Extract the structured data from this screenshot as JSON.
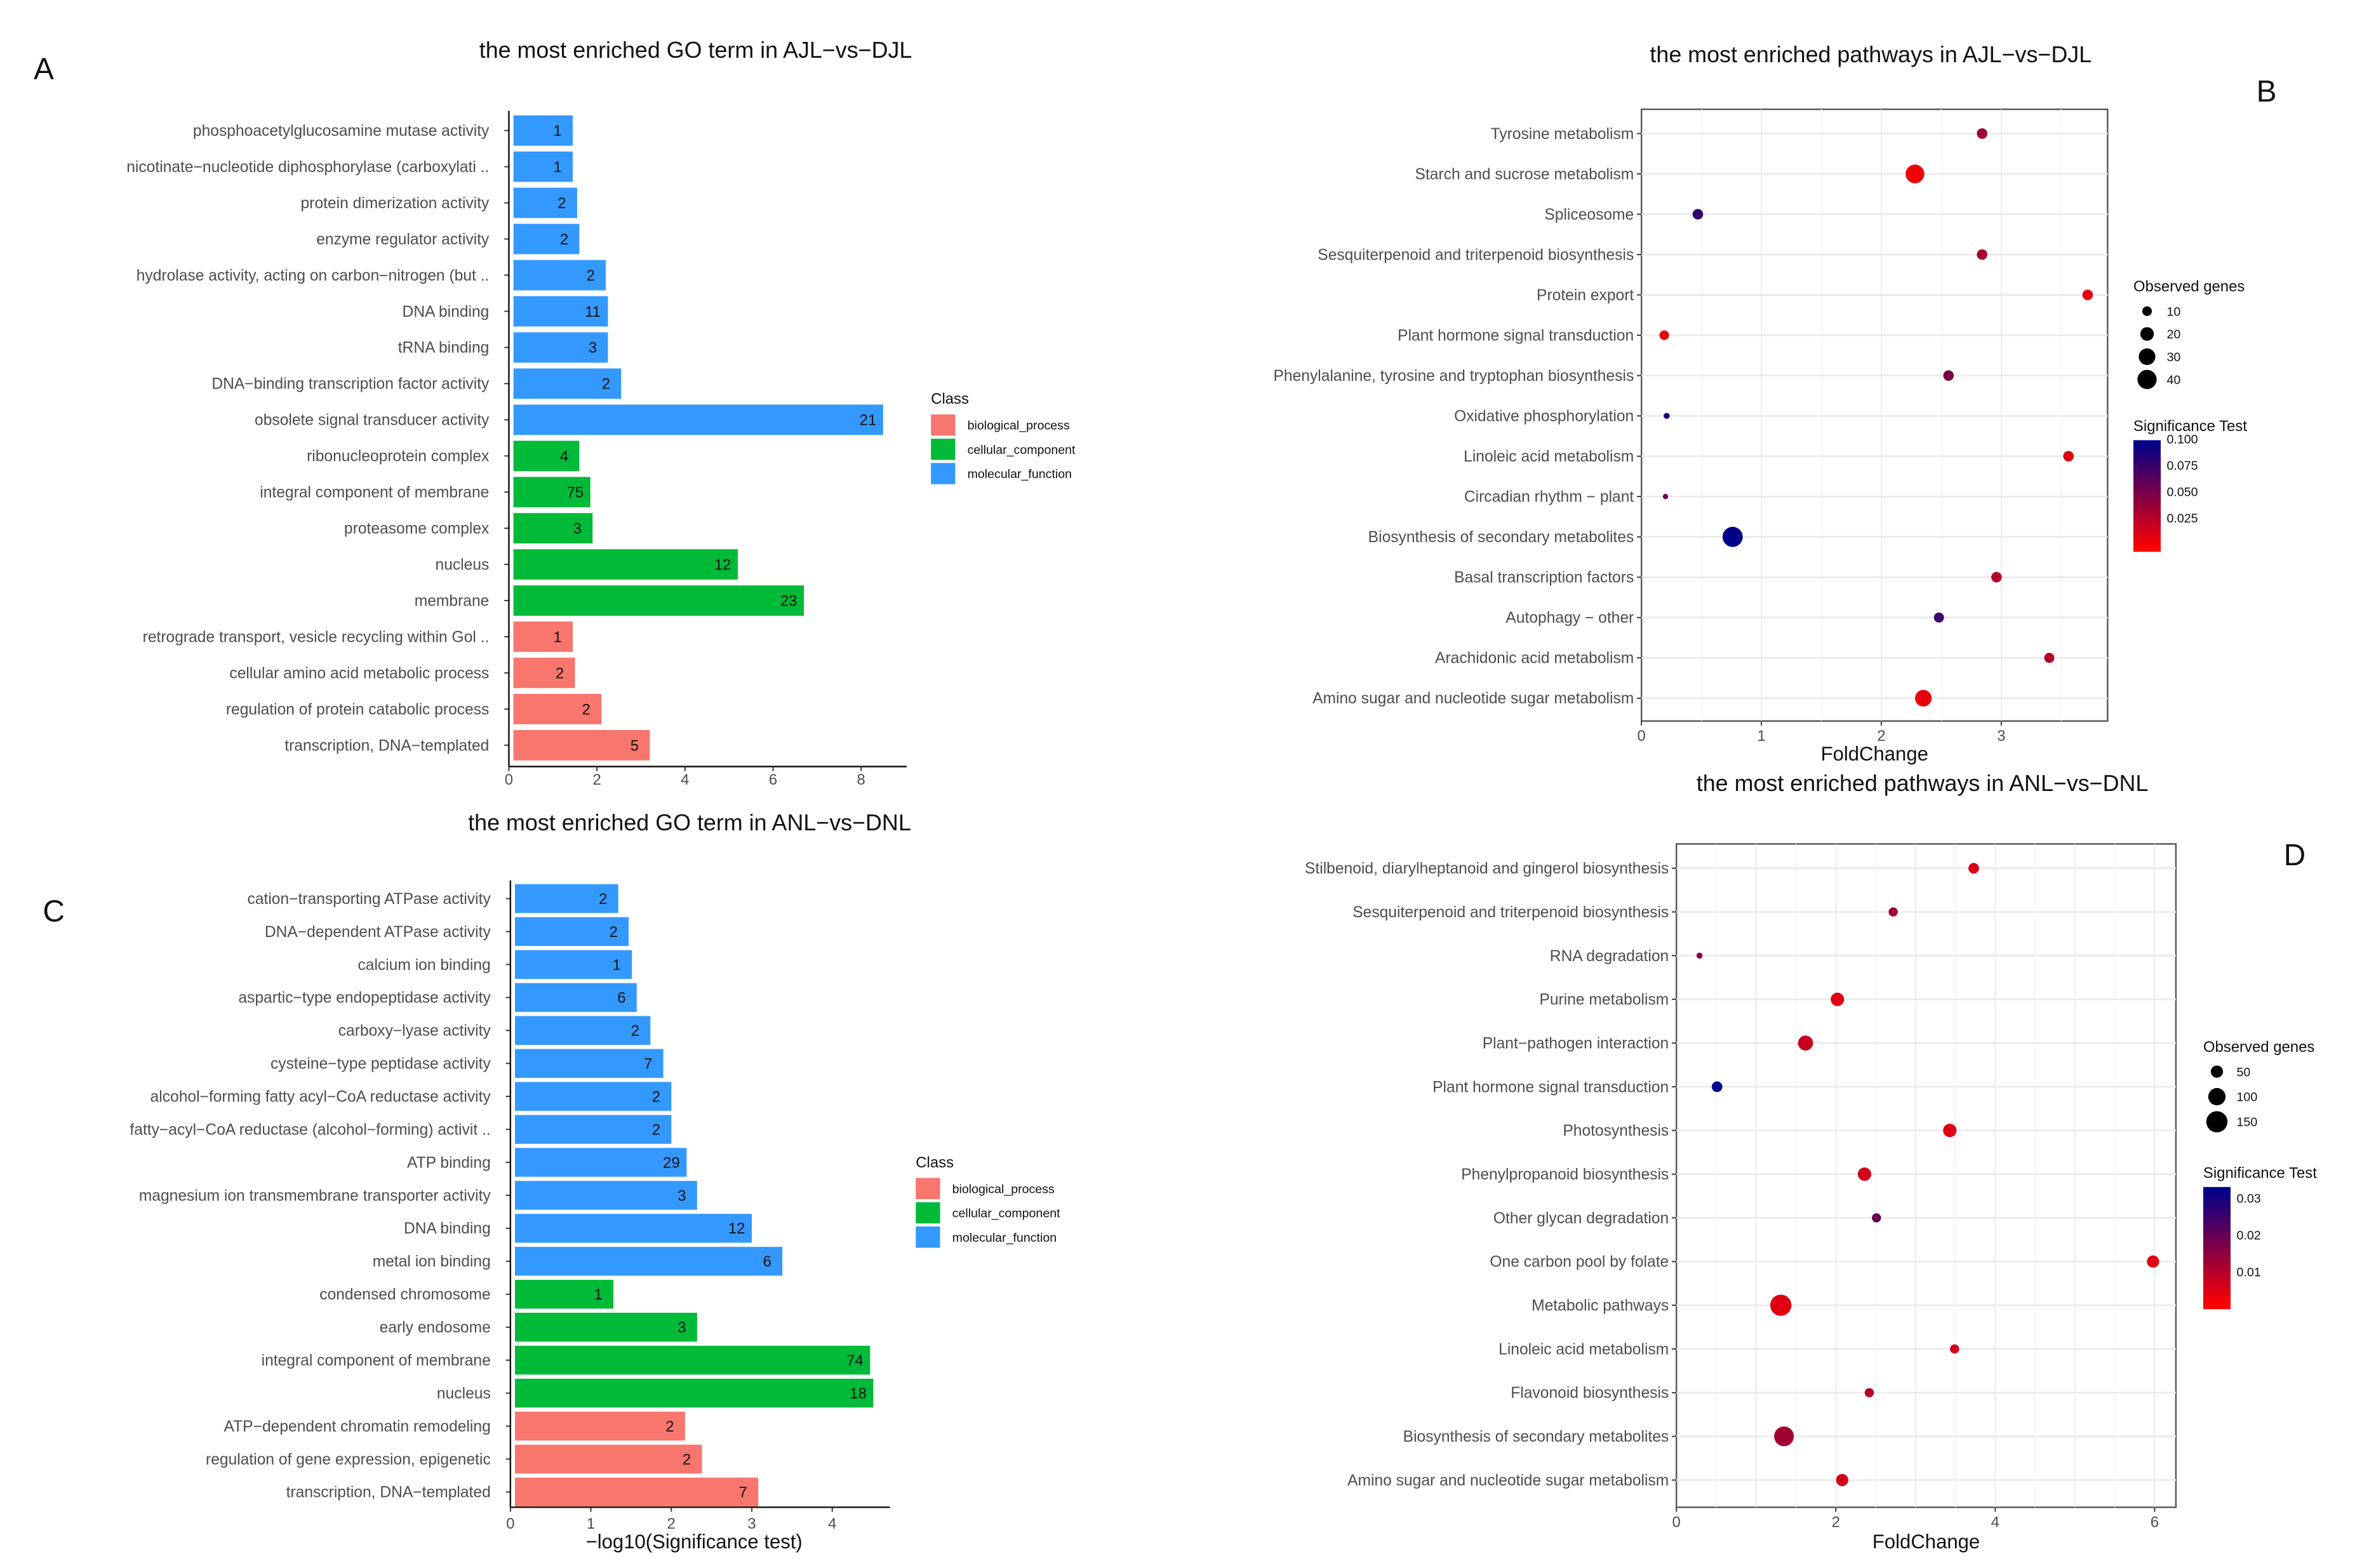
{
  "chart_data": [
    {
      "panel": "A",
      "type": "bar",
      "orientation": "horizontal",
      "title": "the most enriched GO term in AJL−vs−DJL",
      "xlabel": "",
      "xlim": [
        0,
        8.7
      ],
      "xticks": [
        "0",
        "2",
        "4",
        "6",
        "8"
      ],
      "legend_title": "Class",
      "legend": [
        {
          "name": "biological_process",
          "color": "#F8766D"
        },
        {
          "name": "cellular_component",
          "color": "#00BA38"
        },
        {
          "name": "molecular_function",
          "color": "#3399FF"
        }
      ],
      "categories": [
        "phosphoacetylglucosamine mutase activity",
        "nicotinate−nucleotide diphosphorylase (carboxylati ..",
        "protein dimerization activity",
        "enzyme regulator activity",
        "hydrolase activity, acting on carbon−nitrogen (but ..",
        "DNA binding",
        "tRNA binding",
        "DNA−binding transcription factor activity",
        "obsolete signal transducer activity",
        "ribonucleoprotein complex",
        "integral component of membrane",
        "proteasome complex",
        "nucleus",
        "membrane",
        "retrograde transport, vesicle recycling within Gol ..",
        "cellular amino acid metabolic process",
        "regulation of protein catabolic process",
        "transcription, DNA−templated"
      ],
      "class": [
        2,
        2,
        2,
        2,
        2,
        2,
        2,
        2,
        2,
        1,
        1,
        1,
        1,
        1,
        0,
        0,
        0,
        0
      ],
      "values": [
        1.45,
        1.45,
        1.55,
        1.6,
        2.2,
        2.25,
        2.25,
        2.55,
        8.5,
        1.6,
        1.85,
        1.9,
        5.2,
        6.7,
        1.45,
        1.5,
        2.1,
        3.2
      ],
      "labels": [
        "1",
        "1",
        "2",
        "2",
        "2",
        "11",
        "3",
        "2",
        "21",
        "4",
        "75",
        "3",
        "12",
        "23",
        "1",
        "2",
        "2",
        "5"
      ]
    },
    {
      "panel": "B",
      "type": "scatter",
      "title": "the most enriched pathways in AJL−vs−DJL",
      "xlabel": "FoldChange",
      "xlim": [
        0,
        3.9
      ],
      "xticks": [
        "0",
        "1",
        "2",
        "3"
      ],
      "size_legend_title": "Observed genes",
      "size_legend": [
        "10",
        "20",
        "30",
        "40"
      ],
      "color_legend_title": "Significance Test",
      "color_legend": [
        "0.100",
        "0.075",
        "0.050",
        "0.025"
      ],
      "color_range": [
        0,
        0.105
      ],
      "color_low": "#FF0000",
      "color_high": "#00008B",
      "categories": [
        "Tyrosine metabolism",
        "Starch and sucrose metabolism",
        "Spliceosome",
        "Sesquiterpenoid and triterpenoid biosynthesis",
        "Protein export",
        "Plant hormone signal transduction",
        "Phenylalanine, tyrosine and tryptophan biosynthesis",
        "Oxidative phosphorylation",
        "Linoleic acid metabolism",
        "Circadian rhythm − plant",
        "Biosynthesis of secondary metabolites",
        "Basal transcription factors",
        "Autophagy − other",
        "Arachidonic acid metabolism",
        "Amino sugar and nucleotide sugar metabolism"
      ],
      "x": [
        2.84,
        2.28,
        0.47,
        2.84,
        3.72,
        0.19,
        2.56,
        0.21,
        3.56,
        0.2,
        0.76,
        2.96,
        2.48,
        3.4,
        2.35
      ],
      "size": [
        12,
        38,
        12,
        12,
        12,
        10,
        12,
        4,
        12,
        3,
        44,
        12,
        11,
        11,
        30
      ],
      "significance": [
        0.04,
        0.005,
        0.085,
        0.035,
        0.01,
        0.01,
        0.055,
        0.09,
        0.015,
        0.06,
        0.105,
        0.03,
        0.08,
        0.03,
        0.01
      ]
    },
    {
      "panel": "C",
      "type": "bar",
      "orientation": "horizontal",
      "title": "the most enriched GO term in ANL−vs−DNL",
      "xlabel": "−log10(Significance test)",
      "xlim": [
        0,
        4.7
      ],
      "xticks": [
        "0",
        "1",
        "2",
        "3",
        "4"
      ],
      "legend_title": "Class",
      "legend": [
        {
          "name": "biological_process",
          "color": "#F8766D"
        },
        {
          "name": "cellular_component",
          "color": "#00BA38"
        },
        {
          "name": "molecular_function",
          "color": "#3399FF"
        }
      ],
      "categories": [
        "cation−transporting ATPase activity",
        "DNA−dependent ATPase activity",
        "calcium ion binding",
        "aspartic−type endopeptidase activity",
        "carboxy−lyase activity",
        "cysteine−type peptidase activity",
        "alcohol−forming fatty acyl−CoA reductase activity",
        "fatty−acyl−CoA reductase (alcohol−forming) activit ..",
        "ATP binding",
        "magnesium ion transmembrane transporter activity",
        "DNA binding",
        "metal ion binding",
        "condensed chromosome",
        "early endosome",
        "integral component of membrane",
        "nucleus",
        "ATP−dependent chromatin remodeling",
        "regulation of gene expression, epigenetic",
        "transcription, DNA−templated"
      ],
      "class": [
        2,
        2,
        2,
        2,
        2,
        2,
        2,
        2,
        2,
        2,
        2,
        2,
        1,
        1,
        1,
        1,
        0,
        0,
        0
      ],
      "values": [
        1.34,
        1.47,
        1.51,
        1.57,
        1.74,
        1.9,
        2.0,
        2.0,
        2.19,
        2.32,
        3.0,
        3.38,
        1.28,
        2.32,
        4.47,
        4.51,
        2.17,
        2.38,
        3.08
      ],
      "labels": [
        "2",
        "2",
        "1",
        "6",
        "2",
        "7",
        "2",
        "2",
        "29",
        "3",
        "12",
        "6",
        "1",
        "3",
        "74",
        "18",
        "2",
        "2",
        "7"
      ]
    },
    {
      "panel": "D",
      "type": "scatter",
      "title": "the most enriched pathways in ANL−vs−DNL",
      "xlabel": "FoldChange",
      "xlim": [
        0,
        6.3
      ],
      "xticks": [
        "0",
        "2",
        "4",
        "6"
      ],
      "size_legend_title": "Observed genes",
      "size_legend": [
        "50",
        "100",
        "150"
      ],
      "color_legend_title": "Significance Test",
      "color_legend": [
        "0.03",
        "0.02",
        "0.01"
      ],
      "color_range": [
        0,
        0.033
      ],
      "color_low": "#FF0000",
      "color_high": "#00008B",
      "categories": [
        "Stilbenoid, diarylheptanoid and gingerol biosynthesis",
        "Sesquiterpenoid and triterpenoid biosynthesis",
        "RNA degradation",
        "Purine metabolism",
        "Plant−pathogen interaction",
        "Plant hormone signal transduction",
        "Photosynthesis",
        "Phenylpropanoid biosynthesis",
        "Other glycan degradation",
        "One carbon pool by folate",
        "Metabolic pathways",
        "Linoleic acid metabolism",
        "Flavonoid biosynthesis",
        "Biosynthesis of secondary metabolites",
        "Amino sugar and nucleotide sugar metabolism"
      ],
      "x": [
        3.73,
        2.72,
        0.29,
        2.02,
        1.62,
        0.51,
        3.43,
        2.36,
        2.51,
        5.98,
        1.31,
        3.49,
        2.42,
        1.35,
        2.08
      ],
      "size": [
        38,
        28,
        12,
        60,
        75,
        38,
        60,
        60,
        28,
        50,
        150,
        28,
        28,
        130,
        50
      ],
      "significance": [
        0.005,
        0.012,
        0.016,
        0.004,
        0.007,
        0.033,
        0.004,
        0.006,
        0.02,
        0.004,
        0.004,
        0.006,
        0.01,
        0.012,
        0.006
      ]
    }
  ]
}
